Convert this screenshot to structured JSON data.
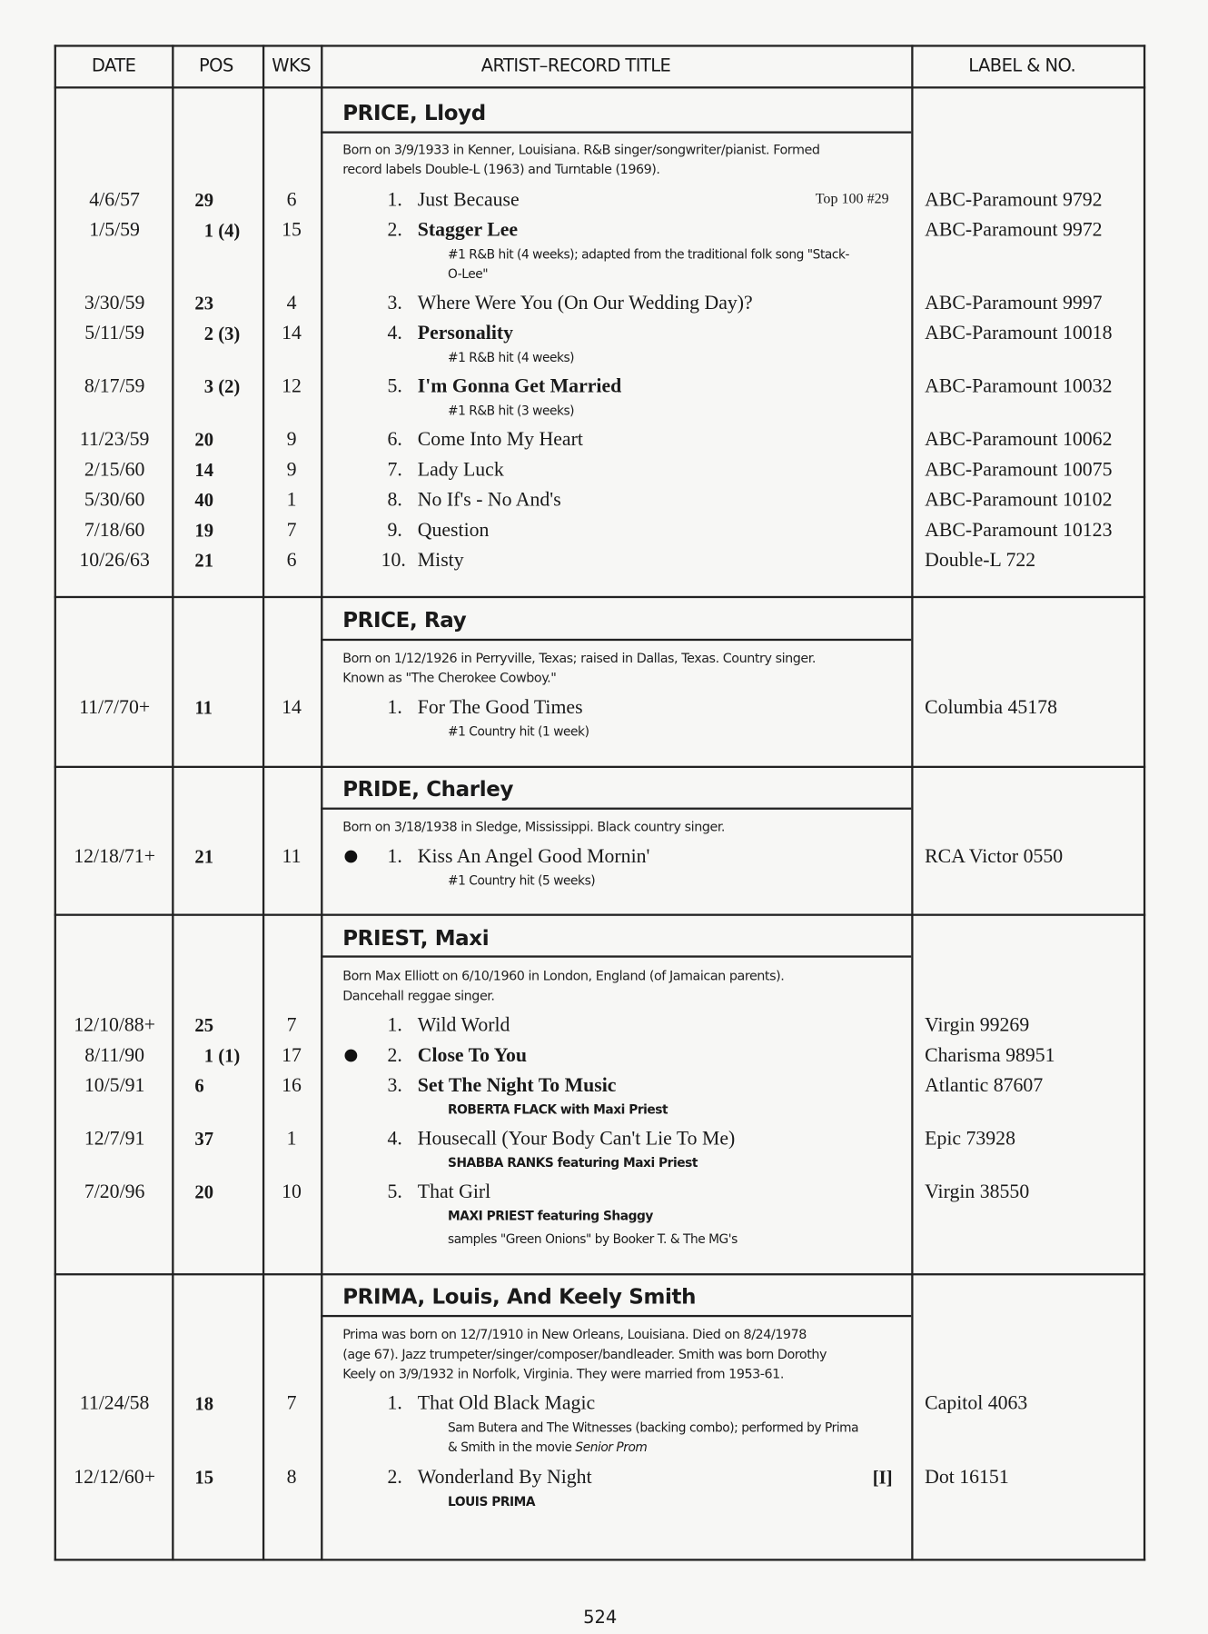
{
  "header": {
    "date": "DATE",
    "pos": "POS",
    "wks": "WKS",
    "title": "ARTIST–RECORD TITLE",
    "label": "LABEL & NO."
  },
  "page_number": "524",
  "artists": [
    {
      "name": "PRICE, Lloyd",
      "bio": [
        "Born on 3/9/1933 in Kenner, Louisiana. R&B singer/songwriter/pianist. Formed",
        "record labels Double-L (1963) and Turntable (1969)."
      ],
      "entries": [
        {
          "date": "4/6/57",
          "pos": "29",
          "wks": "6",
          "num": "1.",
          "title": "Just Because",
          "bold": false,
          "right": "Top 100 #29",
          "label": "ABC-Paramount 9792",
          "notes": []
        },
        {
          "date": "1/5/59",
          "pos": "1 (4)",
          "wks": "15",
          "num": "2.",
          "title": "Stagger Lee",
          "bold": true,
          "label": "ABC-Paramount 9972",
          "notes": [
            "#1 R&B hit (4 weeks); adapted from the traditional folk song \"Stack-",
            "O-Lee\""
          ]
        },
        {
          "date": "3/30/59",
          "pos": "23",
          "wks": "4",
          "num": "3.",
          "title": "Where Were You (On Our Wedding Day)?",
          "bold": false,
          "label": "ABC-Paramount 9997",
          "notes": []
        },
        {
          "date": "5/11/59",
          "pos": "2 (3)",
          "wks": "14",
          "num": "4.",
          "title": "Personality",
          "bold": true,
          "label": "ABC-Paramount 10018",
          "notes": [
            "#1 R&B hit (4 weeks)"
          ]
        },
        {
          "date": "8/17/59",
          "pos": "3 (2)",
          "wks": "12",
          "num": "5.",
          "title": "I'm Gonna Get Married",
          "bold": true,
          "label": "ABC-Paramount 10032",
          "notes": [
            "#1 R&B hit (3 weeks)"
          ]
        },
        {
          "date": "11/23/59",
          "pos": "20",
          "wks": "9",
          "num": "6.",
          "title": "Come Into My Heart",
          "bold": false,
          "label": "ABC-Paramount 10062",
          "notes": []
        },
        {
          "date": "2/15/60",
          "pos": "14",
          "wks": "9",
          "num": "7.",
          "title": "Lady Luck",
          "bold": false,
          "label": "ABC-Paramount 10075",
          "notes": []
        },
        {
          "date": "5/30/60",
          "pos": "40",
          "wks": "1",
          "num": "8.",
          "title": "No If's - No And's",
          "bold": false,
          "label": "ABC-Paramount 10102",
          "notes": []
        },
        {
          "date": "7/18/60",
          "pos": "19",
          "wks": "7",
          "num": "9.",
          "title": "Question",
          "bold": false,
          "label": "ABC-Paramount 10123",
          "notes": []
        },
        {
          "date": "10/26/63",
          "pos": "21",
          "wks": "6",
          "num": "10.",
          "title": "Misty",
          "bold": false,
          "label": "Double-L 722",
          "notes": []
        }
      ]
    },
    {
      "name": "PRICE, Ray",
      "bio": [
        "Born on 1/12/1926 in Perryville, Texas; raised in Dallas, Texas. Country singer.",
        "Known as \"The Cherokee Cowboy.\""
      ],
      "entries": [
        {
          "date": "11/7/70+",
          "pos": "11",
          "wks": "14",
          "num": "1.",
          "title": "For The Good Times",
          "bold": false,
          "label": "Columbia 45178",
          "notes": [
            "#1 Country hit (1 week)"
          ]
        }
      ]
    },
    {
      "name": "PRIDE, Charley",
      "bio": [
        "Born on 3/18/1938 in Sledge, Mississippi. Black country singer."
      ],
      "entries": [
        {
          "date": "12/18/71+",
          "pos": "21",
          "wks": "11",
          "bullet": true,
          "num": "1.",
          "title": "Kiss An Angel Good Mornin'",
          "bold": false,
          "label": "RCA Victor 0550",
          "notes": [
            "#1 Country hit (5 weeks)"
          ]
        }
      ]
    },
    {
      "name": "PRIEST, Maxi",
      "bio": [
        "Born Max Elliott on 6/10/1960 in London, England (of Jamaican parents).",
        "Dancehall reggae singer."
      ],
      "entries": [
        {
          "date": "12/10/88+",
          "pos": "25",
          "wks": "7",
          "num": "1.",
          "title": "Wild World",
          "bold": false,
          "label": "Virgin 99269",
          "notes": []
        },
        {
          "date": "8/11/90",
          "pos": "1 (1)",
          "wks": "17",
          "bullet": true,
          "num": "2.",
          "title": "Close To You",
          "bold": true,
          "label": "Charisma 98951",
          "notes": []
        },
        {
          "date": "10/5/91",
          "pos": "6",
          "wks": "16",
          "num": "3.",
          "title": "Set The Night To Music",
          "bold": true,
          "label": "Atlantic 87607",
          "notes": [
            "ROBERTA FLACK with Maxi Priest"
          ]
        },
        {
          "date": "12/7/91",
          "pos": "37",
          "wks": "1",
          "num": "4.",
          "title": "Housecall (Your Body Can't Lie To Me)",
          "bold": false,
          "label": "Epic 73928",
          "notes": [
            "SHABBA RANKS featuring Maxi Priest"
          ]
        },
        {
          "date": "7/20/96",
          "pos": "20",
          "wks": "10",
          "num": "5.",
          "title": "That Girl",
          "bold": false,
          "label": "Virgin 38550",
          "notes": [
            "MAXI PRIEST featuring Shaggy",
            "samples \"Green Onions\" by Booker T. & The MG's"
          ]
        }
      ]
    },
    {
      "name": "PRIMA, Louis, And Keely Smith",
      "bio": [
        "Prima was born on 12/7/1910 in New Orleans, Louisiana. Died on 8/24/1978",
        "(age 67). Jazz trumpeter/singer/composer/bandleader. Smith was born Dorothy",
        "Keely on 3/9/1932 in Norfolk, Virginia. They were married from 1953-61."
      ],
      "entries": [
        {
          "date": "11/24/58",
          "pos": "18",
          "wks": "7",
          "num": "1.",
          "title": "That Old Black Magic",
          "bold": false,
          "label": "Capitol 4063",
          "notes": [
            "Sam Butera and The Witnesses (backing combo); performed by Prima",
            "& Smith in the movie Senior Prom"
          ]
        },
        {
          "date": "12/12/60+",
          "pos": "15",
          "wks": "8",
          "num": "2.",
          "title": "Wonderland By Night",
          "bold": false,
          "right": "[I]",
          "label": "Dot 16151",
          "notes": [
            "LOUIS PRIMA"
          ]
        }
      ]
    }
  ]
}
